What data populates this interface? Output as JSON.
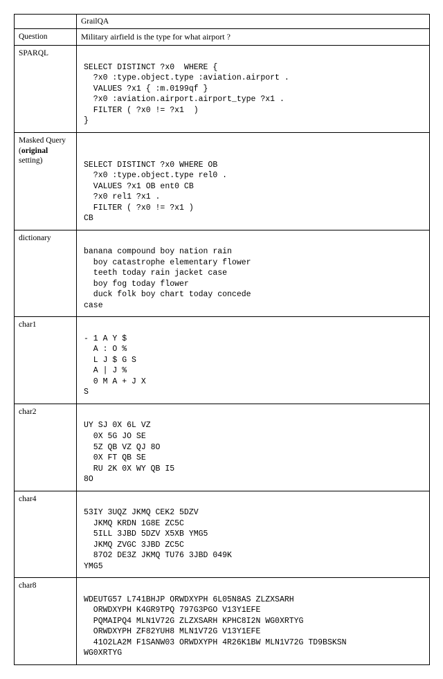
{
  "header": {
    "dataset": "GrailQA"
  },
  "question_row": {
    "label": "Question",
    "text": "Military airfield is the type for what airport ?"
  },
  "sparql_row": {
    "label": "SPARQL",
    "code": "\nSELECT DISTINCT ?x0  WHERE {\n  ?x0 :type.object.type :aviation.airport .\n  VALUES ?x1 { :m.0199qf }\n  ?x0 :aviation.airport.airport_type ?x1 .\n  FILTER ( ?x0 != ?x1  )\n}\n"
  },
  "masked_row": {
    "label_line1": "Masked  Query",
    "label_line2_prefix": "(",
    "label_line2_bold": "original",
    "label_line3": "setting)",
    "code": "\n\nSELECT DISTINCT ?x0 WHERE OB\n  ?x0 :type.object.type rel0 .\n  VALUES ?x1 OB ent0 CB\n  ?x0 rel1 ?x1 .\n  FILTER ( ?x0 != ?x1 )\nCB\n"
  },
  "dictionary_row": {
    "label": "dictionary",
    "code": "\nbanana compound boy nation rain\n  boy catastrophe elementary flower\n  teeth today rain jacket case\n  boy fog today flower\n  duck folk boy chart today concede\ncase\n"
  },
  "char1_row": {
    "label": "char1",
    "code": "\n- 1 A Y $\n  A : O %\n  L J $ G S\n  A | J %\n  0 M A + J X\nS\n"
  },
  "char2_row": {
    "label": "char2",
    "code": "\nUY SJ 0X 6L VZ\n  0X 5G JO SE\n  5Z QB VZ QJ 8O\n  0X FT QB SE\n  RU 2K 0X WY QB I5\n8O\n"
  },
  "char4_row": {
    "label": "char4",
    "code": "\n53IY 3UQZ JKMQ CEK2 5DZV\n  JKMQ KRDN 1G8E ZC5C\n  5ILL 3JBD 5DZV X5XB YMG5\n  JKMQ ZVGC 3JBD ZC5C\n  87O2 DE3Z JKMQ TU76 3JBD 049K\nYMG5\n"
  },
  "char8_row": {
    "label": "char8",
    "code": "\nWDEUTG57 L741BHJP ORWDXYPH 6L05N8AS ZLZXSARH\n  ORWDXYPH K4GR9TPQ 797G3PGO V13Y1EFE\n  PQMAIPQ4 MLN1V72G ZLZXSARH KPHC8I2N WG0XRTYG\n  ORWDXYPH ZF82YUH8 MLN1V72G V13Y1EFE\n  41O2LA2M F1SANW03 ORWDXYPH 4R26K1BW MLN1V72G TD9BSKSN\nWG0XRTYG\n"
  },
  "colors": {
    "border": "#000000",
    "text": "#000000",
    "background": "#ffffff"
  },
  "fonts": {
    "label_family": "Times New Roman",
    "code_family": "Courier New",
    "label_size_pt": 11.5,
    "code_size_pt": 11.5
  }
}
